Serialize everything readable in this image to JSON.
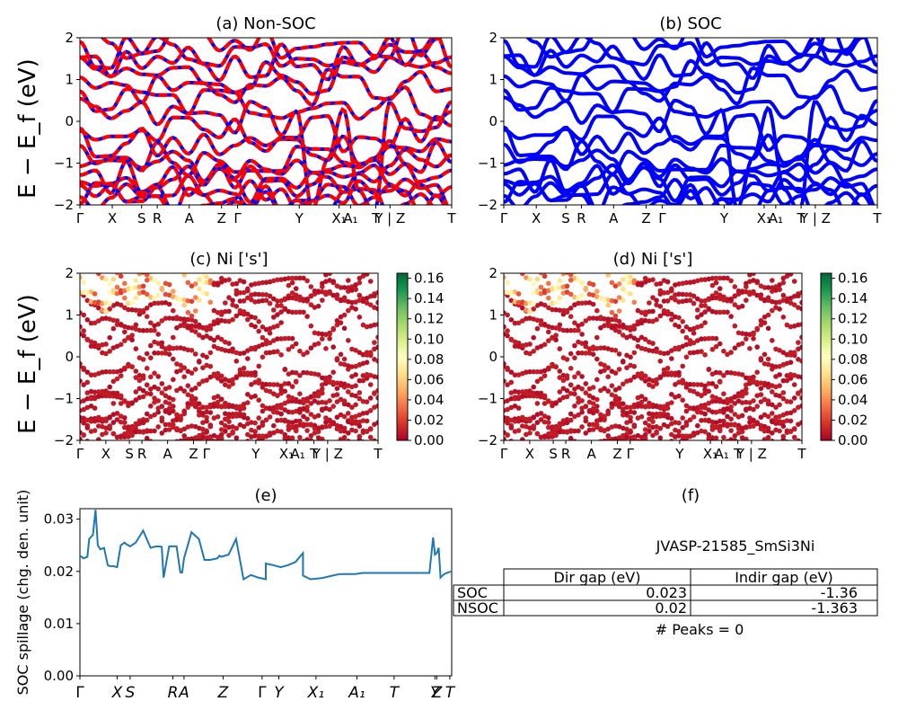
{
  "chart_data": [
    {
      "type": "line",
      "title": "(a) Non-SOC",
      "ylabel": "E − E_f (eV)",
      "ylim": [
        -2,
        2
      ],
      "yticks": [
        "−2",
        "−1",
        "0",
        "1",
        "2"
      ],
      "kpath": [
        "Γ",
        "X",
        "S",
        "R",
        "A",
        "Z",
        "Γ",
        "Y",
        "X₁",
        "A₁",
        "T",
        "Y | Z",
        "T"
      ],
      "series": [
        {
          "color": "#0000ff",
          "style": "solid"
        },
        {
          "color": "#ff0000",
          "style": "dashed"
        }
      ]
    },
    {
      "type": "line",
      "title": "(b) SOC",
      "ylim": [
        -2,
        2
      ],
      "yticks": [
        "−2",
        "−1",
        "0",
        "1",
        "2"
      ],
      "kpath": [
        "Γ",
        "X",
        "S",
        "R",
        "A",
        "Z",
        "Γ",
        "Y",
        "X₁",
        "A₁",
        "T",
        "Y | Z",
        "T"
      ],
      "series": [
        {
          "color": "#0000ff",
          "style": "solid"
        }
      ]
    },
    {
      "type": "scatter",
      "title": "(c)  Ni ['s']",
      "ylabel": "E − E_f (eV)",
      "ylim": [
        -2,
        2
      ],
      "yticks": [
        "−2",
        "−1",
        "0",
        "1",
        "2"
      ],
      "kpath": [
        "Γ",
        "X",
        "S",
        "R",
        "A",
        "Z",
        "Γ",
        "Y",
        "X₁",
        "A₁",
        "T",
        "Y | Z",
        "T"
      ],
      "colorbar": {
        "colormap": "RdYlGn",
        "min": 0.0,
        "max": 0.165,
        "ticks": [
          "0.00",
          "0.02",
          "0.04",
          "0.06",
          "0.08",
          "0.10",
          "0.12",
          "0.14",
          "0.16"
        ]
      }
    },
    {
      "type": "scatter",
      "title": "(d) Ni ['s']",
      "ylim": [
        -2,
        2
      ],
      "yticks": [
        "−2",
        "−1",
        "0",
        "1",
        "2"
      ],
      "kpath": [
        "Γ",
        "X",
        "S",
        "R",
        "A",
        "Z",
        "Γ",
        "Y",
        "X₁",
        "A₁",
        "T",
        "Y | Z",
        "T"
      ],
      "colorbar": {
        "colormap": "RdYlGn",
        "min": 0.0,
        "max": 0.165,
        "ticks": [
          "0.00",
          "0.02",
          "0.04",
          "0.06",
          "0.08",
          "0.10",
          "0.12",
          "0.14",
          "0.16"
        ]
      }
    },
    {
      "type": "line",
      "title": "(e)",
      "ylabel": "SOC spillage (chg. den. unit)",
      "ylim": [
        0,
        0.032
      ],
      "yticks": [
        "0.00",
        "0.01",
        "0.02",
        "0.03"
      ],
      "xticks": [
        "Γ",
        "X",
        "S",
        "R",
        "A",
        "Z",
        "Γ",
        "Y",
        "X₁",
        "A₁",
        "T",
        "Y",
        "Z",
        "T"
      ],
      "series": [
        {
          "color": "#1f77b4",
          "x": [
            0,
            0.01,
            0.02,
            0.025,
            0.035,
            0.042,
            0.048,
            0.055,
            0.065,
            0.075,
            0.08,
            0.09,
            0.1,
            0.11,
            0.12,
            0.125,
            0.135,
            0.15,
            0.17,
            0.19,
            0.2,
            0.21,
            0.22,
            0.225,
            0.24,
            0.26,
            0.27,
            0.275,
            0.28,
            0.29,
            0.3,
            0.32,
            0.335,
            0.35,
            0.37,
            0.375,
            0.38,
            0.4,
            0.42,
            0.44,
            0.46,
            0.48,
            0.5,
            0.5,
            0.52,
            0.54,
            0.56,
            0.58,
            0.6,
            0.6,
            0.62,
            0.65,
            0.68,
            0.7,
            0.72,
            0.73,
            0.74,
            0.76,
            0.8,
            0.85,
            0.9,
            0.94,
            0.95,
            0.955,
            0.96,
            0.965,
            0.97,
            0.98,
            0.99,
            1.0
          ],
          "values": [
            0.023,
            0.0225,
            0.0228,
            0.0262,
            0.027,
            0.032,
            0.025,
            0.0242,
            0.0245,
            0.0212,
            0.021,
            0.021,
            0.0208,
            0.025,
            0.0255,
            0.0252,
            0.0248,
            0.0255,
            0.0278,
            0.0245,
            0.0247,
            0.0248,
            0.0247,
            0.0188,
            0.0248,
            0.0248,
            0.0198,
            0.0198,
            0.0225,
            0.025,
            0.0275,
            0.0262,
            0.0222,
            0.0222,
            0.0225,
            0.023,
            0.0228,
            0.0232,
            0.0262,
            0.0185,
            0.0193,
            0.0188,
            0.0185,
            0.0215,
            0.0212,
            0.0208,
            0.0212,
            0.0218,
            0.0235,
            0.0192,
            0.0185,
            0.0187,
            0.0192,
            0.0195,
            0.0195,
            0.0195,
            0.0195,
            0.0197,
            0.0197,
            0.0197,
            0.0197,
            0.0197,
            0.0265,
            0.0232,
            0.0235,
            0.0245,
            0.0188,
            0.0195,
            0.0198,
            0.02
          ]
        }
      ]
    },
    {
      "type": "table",
      "title": "(f)",
      "subtitle": "JVASP-21585_SmSi3Ni",
      "columns": [
        "Dir gap (eV)",
        "Indir gap (eV)"
      ],
      "rows": [
        {
          "label": "SOC",
          "values": [
            "0.023",
            "-1.36"
          ]
        },
        {
          "label": "NSOC",
          "values": [
            "0.02",
            "-1.363"
          ]
        }
      ],
      "footer": "# Peaks = 0"
    }
  ]
}
